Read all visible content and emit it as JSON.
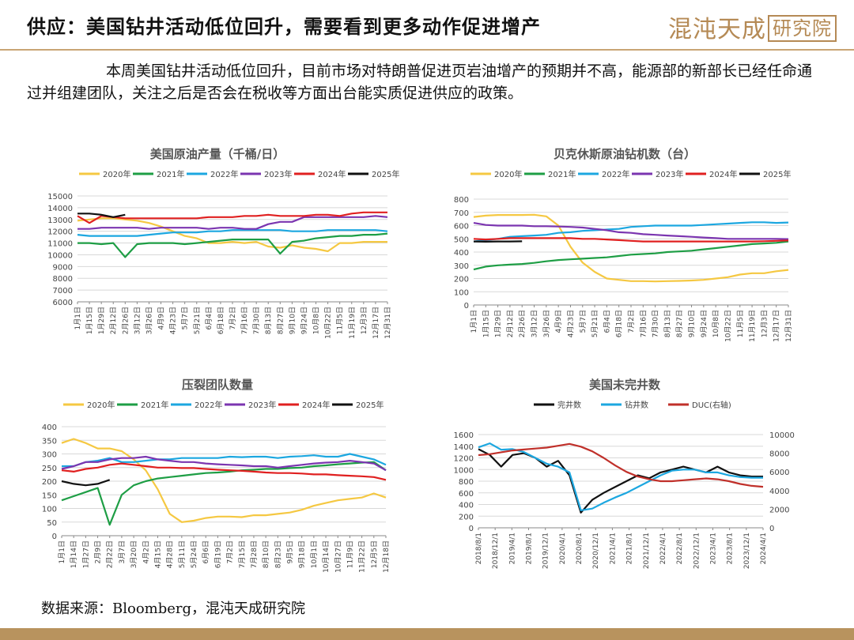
{
  "header": {
    "title": "供应：美国钻井活动低位回升，需要看到更多动作促进增产",
    "logo_text": "混沌天成",
    "logo_box_text": "研究院"
  },
  "intro": "本周美国钻井活动低位回升，目前市场对特朗普促进页岩油增产的预期并不高，能源部的新部长已经任命通过并组建团队，关注之后是否会在税收等方面出台能实质促进供应的政策。",
  "source": "数据来源：Bloomberg，混沌天成研究院",
  "colors": {
    "2020": "#f5c842",
    "2021": "#1e9e45",
    "2022": "#1ca7e0",
    "2023": "#7b35b0",
    "2024": "#e02020",
    "2025": "#111111"
  },
  "chart_data": [
    {
      "type": "line",
      "title": "美国原油产量（千桶/日）",
      "x_ticks": [
        "1月1日",
        "1月15日",
        "1月29日",
        "2月12日",
        "2月26日",
        "3月12日",
        "3月26日",
        "4月9日",
        "4月23日",
        "5月7日",
        "5月21日",
        "6月4日",
        "6月18日",
        "7月2日",
        "7月16日",
        "7月30日",
        "8月13日",
        "8月27日",
        "9月10日",
        "9月24日",
        "10月8日",
        "10月22日",
        "11月5日",
        "11月19日",
        "12月3日",
        "12月17日",
        "12月31日"
      ],
      "ylim": [
        6000,
        15000
      ],
      "y_ticks": [
        6000,
        7000,
        8000,
        9000,
        10000,
        11000,
        12000,
        13000,
        14000,
        15000
      ],
      "series": [
        {
          "name": "2020年",
          "color": "#f5c842",
          "values": [
            12900,
            13000,
            13100,
            13100,
            13000,
            12900,
            12700,
            12400,
            12000,
            11600,
            11400,
            11000,
            11000,
            11100,
            11000,
            11100,
            10700,
            10600,
            10800,
            10600,
            10500,
            10300,
            11000,
            11000,
            11100,
            11100,
            11100
          ]
        },
        {
          "name": "2021年",
          "color": "#1e9e45",
          "values": [
            11000,
            11000,
            10900,
            11000,
            9800,
            10900,
            11000,
            11000,
            11000,
            10900,
            11000,
            11100,
            11200,
            11300,
            11300,
            11300,
            11300,
            10100,
            11100,
            11200,
            11400,
            11500,
            11600,
            11600,
            11700,
            11700,
            11800
          ]
        },
        {
          "name": "2022年",
          "color": "#1ca7e0",
          "values": [
            11700,
            11600,
            11600,
            11600,
            11600,
            11600,
            11700,
            11800,
            11900,
            11900,
            11900,
            12000,
            12000,
            12100,
            12100,
            12100,
            12100,
            12100,
            12000,
            12000,
            12000,
            12100,
            12100,
            12100,
            12100,
            12100,
            12000
          ]
        },
        {
          "name": "2023年",
          "color": "#7b35b0",
          "values": [
            12200,
            12200,
            12300,
            12300,
            12300,
            12300,
            12200,
            12300,
            12300,
            12300,
            12300,
            12200,
            12300,
            12300,
            12200,
            12200,
            12600,
            12800,
            12800,
            13200,
            13200,
            13200,
            13200,
            13200,
            13200,
            13300,
            13200
          ]
        },
        {
          "name": "2024年",
          "color": "#e02020",
          "values": [
            13300,
            12700,
            13300,
            13200,
            13100,
            13100,
            13100,
            13100,
            13100,
            13100,
            13100,
            13200,
            13200,
            13200,
            13300,
            13300,
            13400,
            13300,
            13300,
            13300,
            13400,
            13400,
            13300,
            13500,
            13600,
            13600,
            13600
          ]
        },
        {
          "name": "2025年",
          "color": "#111111",
          "values": [
            13500,
            13500,
            13400,
            13200,
            13400
          ]
        }
      ]
    },
    {
      "type": "line",
      "title": "贝克休斯原油钻机数（台）",
      "x_ticks": [
        "1月1日",
        "1月15日",
        "1月29日",
        "2月12日",
        "2月26日",
        "3月12日",
        "3月26日",
        "4月9日",
        "4月23日",
        "5月7日",
        "5月21日",
        "6月4日",
        "6月18日",
        "7月2日",
        "7月16日",
        "7月30日",
        "8月13日",
        "8月27日",
        "9月10日",
        "9月24日",
        "10月8日",
        "10月22日",
        "11月5日",
        "11月19日",
        "12月3日",
        "12月17日",
        "12月31日"
      ],
      "ylim": [
        0,
        800
      ],
      "y_ticks": [
        0,
        100,
        200,
        300,
        400,
        500,
        600,
        700,
        800
      ],
      "series": [
        {
          "name": "2020年",
          "color": "#f5c842",
          "values": [
            665,
            675,
            680,
            680,
            680,
            682,
            670,
            600,
            440,
            320,
            250,
            200,
            190,
            180,
            180,
            178,
            180,
            182,
            185,
            190,
            200,
            210,
            230,
            240,
            240,
            255,
            265
          ]
        },
        {
          "name": "2021年",
          "color": "#1e9e45",
          "values": [
            268,
            290,
            300,
            305,
            310,
            318,
            330,
            340,
            345,
            350,
            355,
            360,
            370,
            380,
            385,
            390,
            400,
            405,
            410,
            420,
            430,
            440,
            450,
            460,
            465,
            470,
            480
          ]
        },
        {
          "name": "2022年",
          "color": "#1ca7e0",
          "values": [
            480,
            490,
            500,
            515,
            520,
            525,
            530,
            545,
            550,
            560,
            565,
            570,
            575,
            590,
            595,
            600,
            600,
            600,
            600,
            605,
            610,
            615,
            620,
            625,
            625,
            620,
            623
          ]
        },
        {
          "name": "2023年",
          "color": "#7b35b0",
          "values": [
            620,
            605,
            600,
            600,
            600,
            595,
            595,
            593,
            590,
            585,
            575,
            565,
            550,
            545,
            535,
            530,
            525,
            520,
            515,
            510,
            505,
            500,
            500,
            500,
            500,
            500,
            498
          ]
        },
        {
          "name": "2024年",
          "color": "#e02020",
          "values": [
            500,
            495,
            500,
            505,
            505,
            505,
            505,
            505,
            505,
            500,
            500,
            495,
            490,
            485,
            480,
            480,
            480,
            480,
            480,
            480,
            480,
            480,
            480,
            480,
            482,
            485,
            488
          ]
        },
        {
          "name": "2025年",
          "color": "#111111",
          "values": [
            480,
            478,
            480,
            480,
            481
          ]
        }
      ]
    },
    {
      "type": "line",
      "title": "压裂团队数量",
      "x_ticks": [
        "1月1日",
        "1月14日",
        "1月27日",
        "2月9日",
        "2月22日",
        "3月7日",
        "3月20日",
        "4月2日",
        "4月15日",
        "4月28日",
        "5月11日",
        "5月24日",
        "6月6日",
        "6月19日",
        "7月2日",
        "7月15日",
        "7月28日",
        "8月10日",
        "8月23日",
        "9月5日",
        "9月18日",
        "10月1日",
        "10月14日",
        "10月27日",
        "11月9日",
        "11月22日",
        "12月5日",
        "12月18日"
      ],
      "ylim": [
        0,
        400
      ],
      "y_ticks": [
        0,
        50,
        100,
        150,
        200,
        250,
        300,
        350,
        400
      ],
      "series": [
        {
          "name": "2020年",
          "color": "#f5c842",
          "values": [
            340,
            355,
            340,
            320,
            320,
            310,
            280,
            240,
            170,
            80,
            50,
            55,
            65,
            70,
            70,
            68,
            75,
            75,
            80,
            85,
            95,
            110,
            120,
            130,
            135,
            140,
            155,
            140
          ]
        },
        {
          "name": "2021年",
          "color": "#1e9e45",
          "values": [
            130,
            145,
            160,
            175,
            40,
            150,
            185,
            200,
            210,
            215,
            220,
            225,
            230,
            232,
            235,
            240,
            242,
            245,
            245,
            248,
            250,
            255,
            258,
            262,
            265,
            268,
            270,
            240
          ]
        },
        {
          "name": "2022年",
          "color": "#1ca7e0",
          "values": [
            255,
            255,
            270,
            275,
            285,
            270,
            270,
            275,
            280,
            280,
            285,
            285,
            285,
            285,
            290,
            288,
            290,
            290,
            285,
            290,
            292,
            295,
            290,
            290,
            300,
            290,
            280,
            260
          ]
        },
        {
          "name": "2023年",
          "color": "#7b35b0",
          "values": [
            245,
            255,
            270,
            270,
            280,
            285,
            285,
            290,
            280,
            275,
            270,
            270,
            265,
            262,
            260,
            258,
            255,
            255,
            250,
            255,
            260,
            265,
            268,
            270,
            275,
            270,
            265,
            240
          ]
        },
        {
          "name": "2024年",
          "color": "#e02020",
          "values": [
            240,
            235,
            245,
            250,
            260,
            265,
            260,
            255,
            250,
            250,
            248,
            248,
            245,
            242,
            240,
            238,
            235,
            232,
            230,
            230,
            228,
            225,
            225,
            222,
            220,
            218,
            215,
            205
          ]
        },
        {
          "name": "2025年",
          "color": "#111111",
          "values": [
            200,
            190,
            185,
            190,
            205
          ]
        }
      ]
    },
    {
      "type": "line",
      "title": "美国未完井数",
      "x_ticks": [
        "2018/8/1",
        "2018/12/1",
        "2019/4/1",
        "2019/8/1",
        "2019/12/1",
        "2020/4/1",
        "2020/8/1",
        "2020/12/1",
        "2021/4/1",
        "2021/8/1",
        "2021/12/1",
        "2022/4/1",
        "2022/8/1",
        "2022/12/1",
        "2023/4/1",
        "2023/8/1",
        "2023/12/1",
        "2024/4/1"
      ],
      "ylim": [
        0,
        1600
      ],
      "y_ticks": [
        0,
        200,
        400,
        600,
        800,
        1000,
        1200,
        1400,
        1600
      ],
      "y2lim": [
        0,
        10000
      ],
      "y2_ticks": [
        0,
        2000,
        4000,
        6000,
        8000,
        10000
      ],
      "series": [
        {
          "name": "完井数",
          "color": "#111111",
          "axis": "left",
          "values": [
            1350,
            1250,
            1050,
            1250,
            1280,
            1200,
            1050,
            1150,
            900,
            260,
            480,
            600,
            700,
            800,
            900,
            850,
            950,
            1000,
            1050,
            1000,
            950,
            1050,
            950,
            900,
            880,
            880
          ]
        },
        {
          "name": "钻井数",
          "color": "#1ca7e0",
          "axis": "left",
          "values": [
            1380,
            1450,
            1340,
            1350,
            1300,
            1200,
            1100,
            1050,
            950,
            300,
            330,
            430,
            520,
            600,
            700,
            800,
            900,
            980,
            1000,
            1000,
            950,
            950,
            900,
            870,
            860,
            860
          ]
        },
        {
          "name": "DUC(右轴)",
          "color": "#c0302a",
          "axis": "right",
          "values": [
            7800,
            7900,
            8100,
            8300,
            8400,
            8500,
            8600,
            8800,
            9000,
            8700,
            8200,
            7500,
            6700,
            6000,
            5500,
            5200,
            5000,
            5000,
            5100,
            5200,
            5300,
            5200,
            5000,
            4700,
            4500,
            4400
          ]
        }
      ]
    }
  ]
}
